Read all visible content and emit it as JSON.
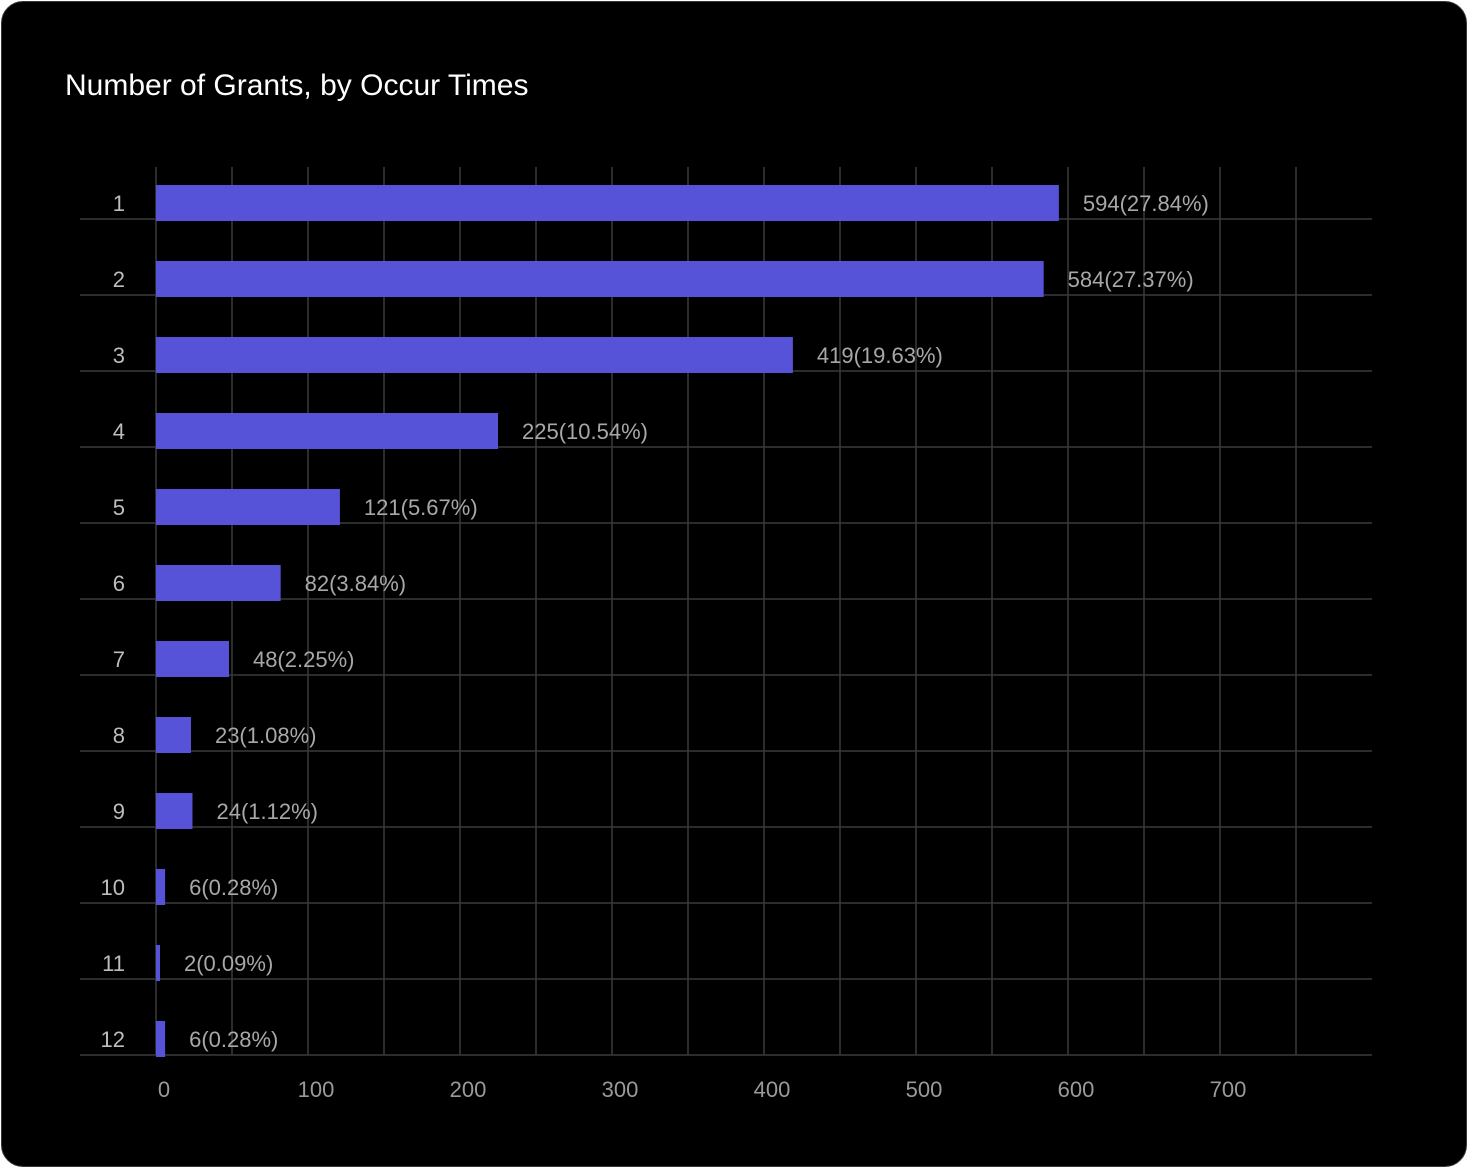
{
  "title": "Number of Grants, by Occur Times",
  "colors": {
    "background": "#000000",
    "bar": "#5753d8",
    "grid": "#3a3a3a",
    "text": "#ffffff",
    "muted_text": "#a8a8a8"
  },
  "chart_data": {
    "type": "bar",
    "orientation": "horizontal",
    "title": "Number of Grants, by Occur Times",
    "categories": [
      "1",
      "2",
      "3",
      "4",
      "5",
      "6",
      "7",
      "8",
      "9",
      "10",
      "11",
      "12"
    ],
    "values": [
      594,
      584,
      419,
      225,
      121,
      82,
      48,
      23,
      24,
      6,
      2,
      6
    ],
    "value_labels": [
      "594(27.84%)",
      "584(27.37%)",
      "419(19.63%)",
      "225(10.54%)",
      "121(5.67%)",
      "82(3.84%)",
      "48(2.25%)",
      "23(1.08%)",
      "24(1.12%)",
      "6(0.28%)",
      "2(0.09%)",
      "6(0.28%)"
    ],
    "x_ticks": [
      0,
      100,
      200,
      300,
      400,
      500,
      600,
      700
    ],
    "xlim": [
      0,
      750
    ],
    "grid": true,
    "legend": "none"
  }
}
